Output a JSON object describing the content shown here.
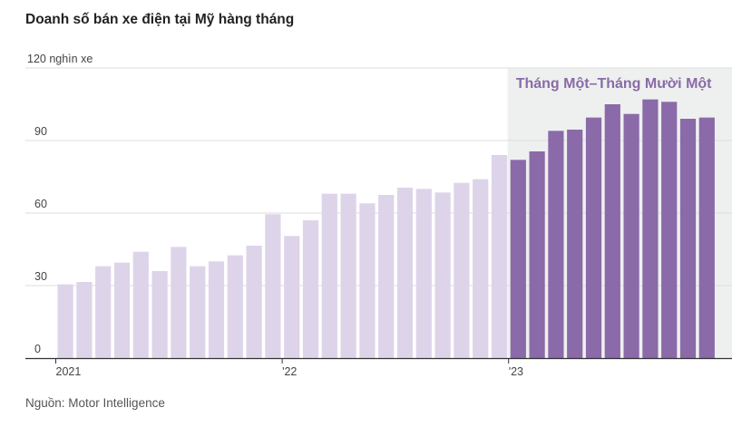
{
  "title": "Doanh số bán xe điện tại Mỹ hàng tháng",
  "source": "Nguồn: Motor Intelligence",
  "colors": {
    "past_bar": "#ddd4ea",
    "highlight_bar": "#8a6aa8",
    "highlight_bg": "#eef0ef",
    "gridline": "#dddddd",
    "axis": "#333333"
  },
  "chart_data": {
    "type": "bar",
    "title": "Doanh số bán xe điện tại Mỹ hàng tháng",
    "ylabel": "120 nghìn xe",
    "ylim": [
      0,
      120
    ],
    "yticks": [
      0,
      30,
      60,
      90,
      120
    ],
    "ytick_labels": [
      "0",
      "30",
      "60",
      "90",
      "120 nghìn xe"
    ],
    "xtick_labels": [
      {
        "index": 0,
        "label": "2021"
      },
      {
        "index": 12,
        "label": "'22"
      },
      {
        "index": 24,
        "label": "'23"
      }
    ],
    "highlight": {
      "start_index": 24,
      "end_index": 34,
      "label": "Tháng Một–Tháng Mười Một"
    },
    "categories": [
      "2021-01",
      "2021-02",
      "2021-03",
      "2021-04",
      "2021-05",
      "2021-06",
      "2021-07",
      "2021-08",
      "2021-09",
      "2021-10",
      "2021-11",
      "2021-12",
      "2022-01",
      "2022-02",
      "2022-03",
      "2022-04",
      "2022-05",
      "2022-06",
      "2022-07",
      "2022-08",
      "2022-09",
      "2022-10",
      "2022-11",
      "2022-12",
      "2023-01",
      "2023-02",
      "2023-03",
      "2023-04",
      "2023-05",
      "2023-06",
      "2023-07",
      "2023-08",
      "2023-09",
      "2023-10",
      "2023-11"
    ],
    "values": [
      30.5,
      31.5,
      38,
      39.5,
      44,
      36,
      46,
      38,
      40,
      42.5,
      46.5,
      59.5,
      50.5,
      57,
      68,
      68,
      64,
      67.5,
      70.5,
      70,
      68.5,
      72.5,
      74,
      84,
      82,
      85.5,
      94,
      94.5,
      99.5,
      105,
      101,
      107,
      106,
      99,
      99.5
    ]
  }
}
